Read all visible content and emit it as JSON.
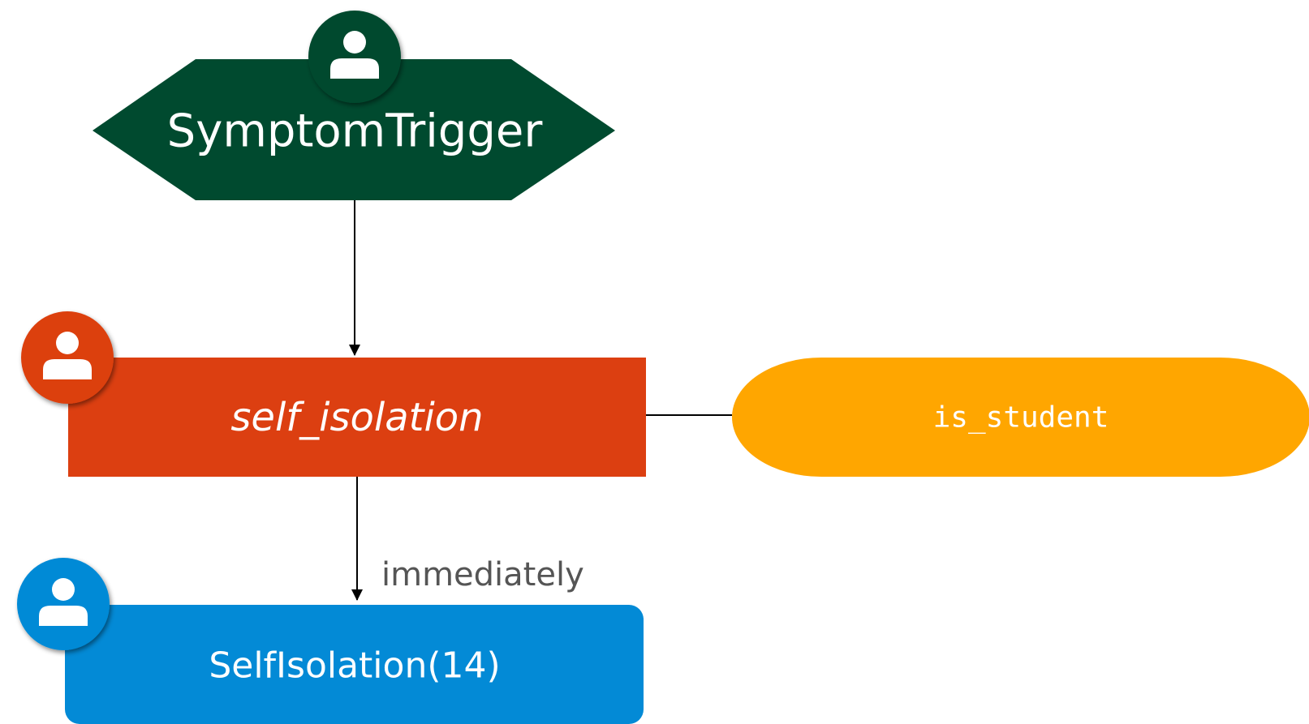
{
  "trigger": {
    "label": "SymptomTrigger",
    "color": "#004a2f",
    "icon": "person-icon"
  },
  "action": {
    "label": "self_isolation",
    "color": "#dc3f11",
    "icon": "person-icon"
  },
  "condition": {
    "label": "is_student",
    "color": "#ffa600"
  },
  "effect": {
    "label": "SelfIsolation(14)",
    "color": "#038ad6",
    "icon": "person-icon"
  },
  "edges": {
    "action_to_effect_label": "immediately"
  }
}
